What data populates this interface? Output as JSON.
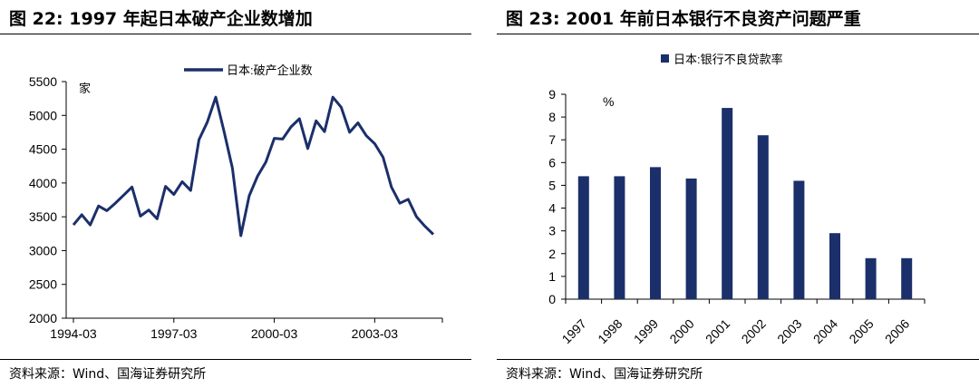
{
  "figures": {
    "left_title": "图 22:  1997 年起日本破产企业数增加",
    "right_title": "图 23:  2001 年前日本银行不良资产问题严重",
    "left_source": "资料来源：Wind、国海证券研究所",
    "right_source": "资料来源：Wind、国海证券研究所"
  },
  "colors": {
    "series": "#1b2f6b",
    "rule": "#000000"
  },
  "chart_data": [
    {
      "type": "line",
      "title": "",
      "legend": [
        "日本:破产企业数"
      ],
      "legend_position": "top",
      "unit_label": "家",
      "xlabel": "",
      "ylabel": "",
      "ylim": [
        2000,
        5500
      ],
      "yticks": [
        2000,
        2500,
        3000,
        3500,
        4000,
        4500,
        5000,
        5500
      ],
      "xtick_labels": [
        "1994-03",
        "1997-03",
        "2000-03",
        "2003-03"
      ],
      "grid": false,
      "x": [
        "1994-03",
        "1994-06",
        "1994-09",
        "1994-12",
        "1995-03",
        "1995-06",
        "1995-09",
        "1995-12",
        "1996-03",
        "1996-06",
        "1996-09",
        "1996-12",
        "1997-03",
        "1997-06",
        "1997-09",
        "1997-12",
        "1998-03",
        "1998-06",
        "1998-09",
        "1998-12",
        "1999-03",
        "1999-06",
        "1999-09",
        "1999-12",
        "2000-03",
        "2000-06",
        "2000-09",
        "2000-12",
        "2001-03",
        "2001-06",
        "2001-09",
        "2001-12",
        "2002-03",
        "2002-06",
        "2002-09",
        "2002-12",
        "2003-03",
        "2003-06",
        "2003-09",
        "2003-12",
        "2004-03",
        "2004-06",
        "2004-09",
        "2004-12"
      ],
      "series": [
        {
          "name": "日本:破产企业数",
          "values": [
            3380,
            3530,
            3380,
            3660,
            3590,
            3700,
            3820,
            3940,
            3510,
            3600,
            3470,
            3950,
            3830,
            4020,
            3890,
            4640,
            4900,
            5270,
            4760,
            4220,
            3220,
            3810,
            4100,
            4310,
            4660,
            4650,
            4830,
            4950,
            4510,
            4920,
            4760,
            5270,
            5120,
            4750,
            4890,
            4700,
            4580,
            4380,
            3940,
            3700,
            3760,
            3500,
            3360,
            3240
          ]
        }
      ]
    },
    {
      "type": "bar",
      "title": "",
      "legend": [
        "日本:银行不良贷款率"
      ],
      "legend_position": "top",
      "unit_label": "%",
      "xlabel": "",
      "ylabel": "",
      "ylim": [
        0,
        9
      ],
      "yticks": [
        0,
        1,
        2,
        3,
        4,
        5,
        6,
        7,
        8,
        9
      ],
      "grid": false,
      "categories": [
        "1997",
        "1998",
        "1999",
        "2000",
        "2001",
        "2002",
        "2003",
        "2004",
        "2005",
        "2006"
      ],
      "series": [
        {
          "name": "日本:银行不良贷款率",
          "values": [
            5.4,
            5.4,
            5.8,
            5.3,
            8.4,
            7.2,
            5.2,
            2.9,
            1.8,
            1.8
          ]
        }
      ]
    }
  ]
}
